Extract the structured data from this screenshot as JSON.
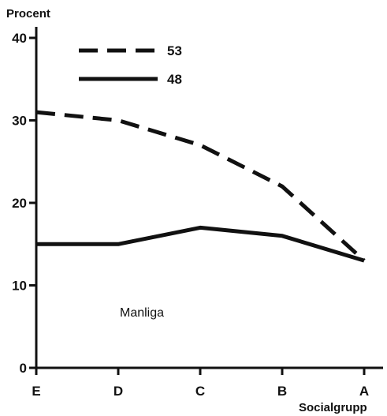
{
  "chart_data": {
    "type": "line",
    "title": "",
    "ylabel": "Procent",
    "xlabel": "Socialgrupp",
    "categories": [
      "E",
      "D",
      "C",
      "B",
      "A"
    ],
    "ylim": [
      0,
      40
    ],
    "yticks": [
      "0",
      "10",
      "20",
      "30",
      "40"
    ],
    "series": [
      {
        "name": "53",
        "style": "dashed",
        "values": [
          31,
          30,
          27,
          22,
          13
        ]
      },
      {
        "name": "48",
        "style": "solid",
        "values": [
          15,
          15,
          17,
          16,
          13
        ]
      }
    ],
    "annotation": "Manliga",
    "grid": false,
    "legend_position": "top-left",
    "line_color": "#111111"
  }
}
